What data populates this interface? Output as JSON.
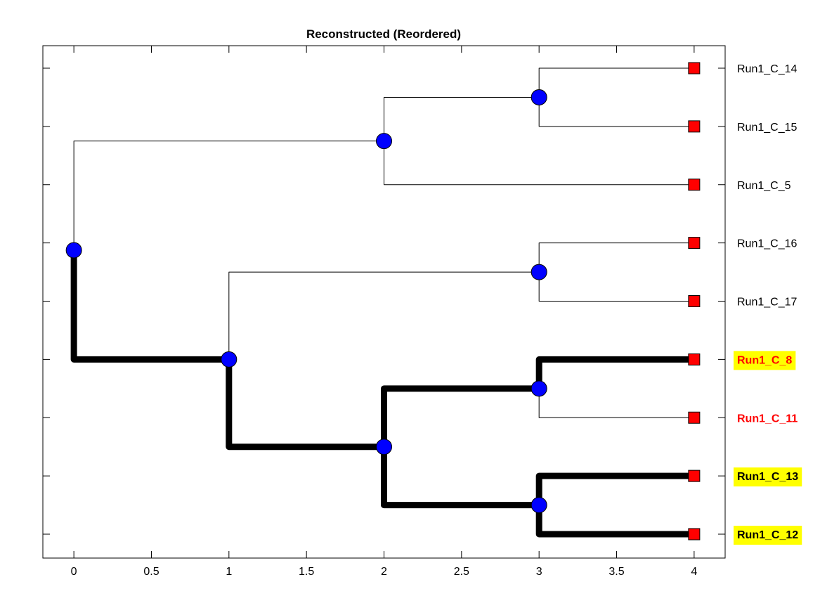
{
  "title": "Reconstructed (Reordered)",
  "colors": {
    "node_fill": "#0000ff",
    "leaf_fill": "#ff0000",
    "highlight_bg": "#ffff00",
    "highlight_text": "#ff0000",
    "edge": "#000000"
  },
  "chart_data": {
    "type": "tree",
    "title": "Reconstructed (Reordered)",
    "xlim": [
      -0.2,
      4.2
    ],
    "x_ticks": [
      0,
      0.5,
      1,
      1.5,
      2,
      2.5,
      3,
      3.5,
      4
    ],
    "x_tick_labels": [
      "0",
      "0.5",
      "1",
      "1.5",
      "2",
      "2.5",
      "3",
      "3.5",
      "4"
    ],
    "leaves": [
      {
        "label": "Run1_C_14",
        "style": "normal"
      },
      {
        "label": "Run1_C_15",
        "style": "normal"
      },
      {
        "label": "Run1_C_5",
        "style": "normal"
      },
      {
        "label": "Run1_C_16",
        "style": "normal"
      },
      {
        "label": "Run1_C_17",
        "style": "normal"
      },
      {
        "label": "Run1_C_8",
        "style": "red-highlight"
      },
      {
        "label": "Run1_C_11",
        "style": "red"
      },
      {
        "label": "Run1_C_13",
        "style": "black-highlight"
      },
      {
        "label": "Run1_C_12",
        "style": "black-highlight"
      }
    ],
    "nodes": [
      {
        "id": "root",
        "depth": 0,
        "children": [
          "a",
          "b"
        ]
      },
      {
        "id": "a",
        "depth": 2,
        "children": [
          "c",
          "L2"
        ]
      },
      {
        "id": "c",
        "depth": 3,
        "children": [
          "L0",
          "L1"
        ]
      },
      {
        "id": "b",
        "depth": 1,
        "children": [
          "d",
          "e"
        ]
      },
      {
        "id": "d",
        "depth": 3,
        "children": [
          "L3",
          "L4"
        ]
      },
      {
        "id": "e",
        "depth": 2,
        "children": [
          "f",
          "g"
        ]
      },
      {
        "id": "f",
        "depth": 3,
        "children": [
          "L5",
          "L6"
        ]
      },
      {
        "id": "g",
        "depth": 3,
        "children": [
          "L7",
          "L8"
        ]
      }
    ],
    "leaf_depth": 4,
    "highlighted_path": [
      "root-b",
      "b-e",
      "e-f",
      "e-g",
      "f-L5",
      "g-L7",
      "g-L8"
    ],
    "grid": false
  }
}
